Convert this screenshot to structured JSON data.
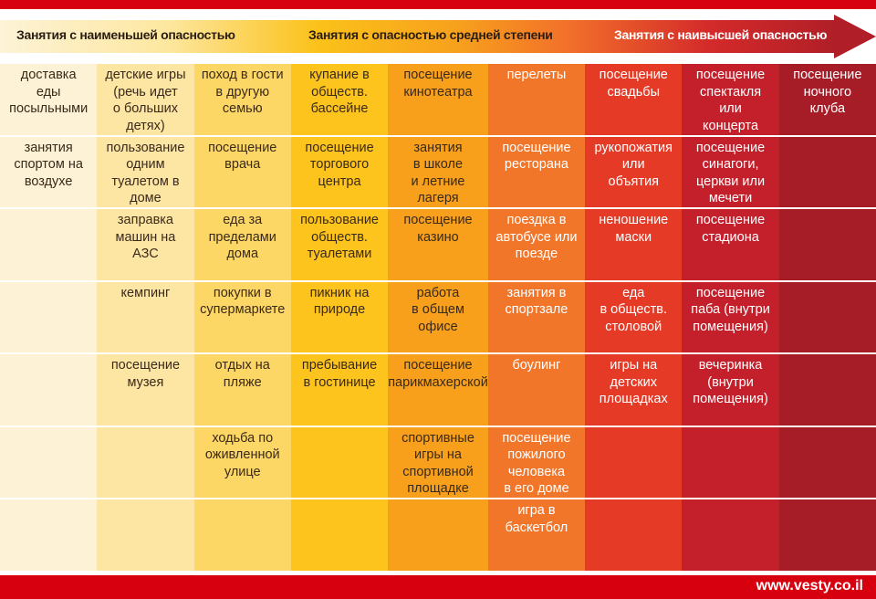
{
  "header": {
    "low": "Занятия с наименьшей опасностью",
    "medium": "Занятия с опасностью средней степени",
    "high": "Занятия с наивысшей опасностью"
  },
  "column_colors": [
    "#fdf2d6",
    "#fde6a4",
    "#fdd766",
    "#fdc41e",
    "#f8a01c",
    "#f2762a",
    "#e43a26",
    "#c4202b",
    "#a61d28"
  ],
  "column_text_colors": [
    "#3a2a1a",
    "#3a2a1a",
    "#3a2a1a",
    "#3a2a1a",
    "#3a2a1a",
    "#ffffff",
    "#ffffff",
    "#ffffff",
    "#ffffff"
  ],
  "rows": [
    [
      "доставка\nеды\nпосыльными",
      "детские игры\n(речь идет\nо больших\nдетях)",
      "поход в гости\nв другую\nсемью",
      "купание в\nобществ.\nбассейне",
      "посещение\nкинотеатра",
      "перелеты",
      "посещение\nсвадьбы",
      "посещение\nспектакля\nили\nконцерта",
      "посещение\nночного\nклуба"
    ],
    [
      "занятия\nспортом на\nвоздухе",
      "пользование\nодним\nтуалетом в\nдоме",
      "посещение\nврача",
      "посещение\nторгового\nцентра",
      "занятия\nв школе\nи летние\nлагеря",
      "посещение\nресторана",
      "рукопожатия\nили\nобъятия",
      "посещение\nсинагоги,\nцеркви или\nмечети",
      ""
    ],
    [
      "",
      "заправка\nмашин на\nАЗС",
      "еда за\nпределами\nдома",
      "пользование\nобществ.\nтуалетами",
      "посещение\nказино",
      "поездка в\nавтобусе или\nпоезде",
      "неношение\nмаски",
      "посещение\nстадиона",
      ""
    ],
    [
      "",
      "кемпинг",
      "покупки в\nсупермаркете",
      "пикник на\nприроде",
      "работа\nв общем\nофисе",
      "занятия в\nспортзале",
      "еда\nв обществ.\nстоловой",
      "посещение\nпаба (внутри\nпомещения)",
      ""
    ],
    [
      "",
      "посещение\nмузея",
      "отдых на\nпляже",
      "пребывание\nв гостинице",
      "посещение\nпарикмахерской",
      "боулинг",
      "игры на\nдетских\nплощадках",
      "вечеринка\n(внутри\nпомещения)",
      ""
    ],
    [
      "",
      "",
      "ходьба по\nоживленной\nулице",
      "",
      "спортивные\nигры на\nспортивной\nплощадке",
      "посещение\nпожилого\nчеловека\nв его доме",
      "",
      "",
      ""
    ],
    [
      "",
      "",
      "",
      "",
      "",
      "игра в\nбаскетбол",
      "",
      "",
      ""
    ]
  ],
  "footer": {
    "site": "www.vesty.co.il"
  }
}
